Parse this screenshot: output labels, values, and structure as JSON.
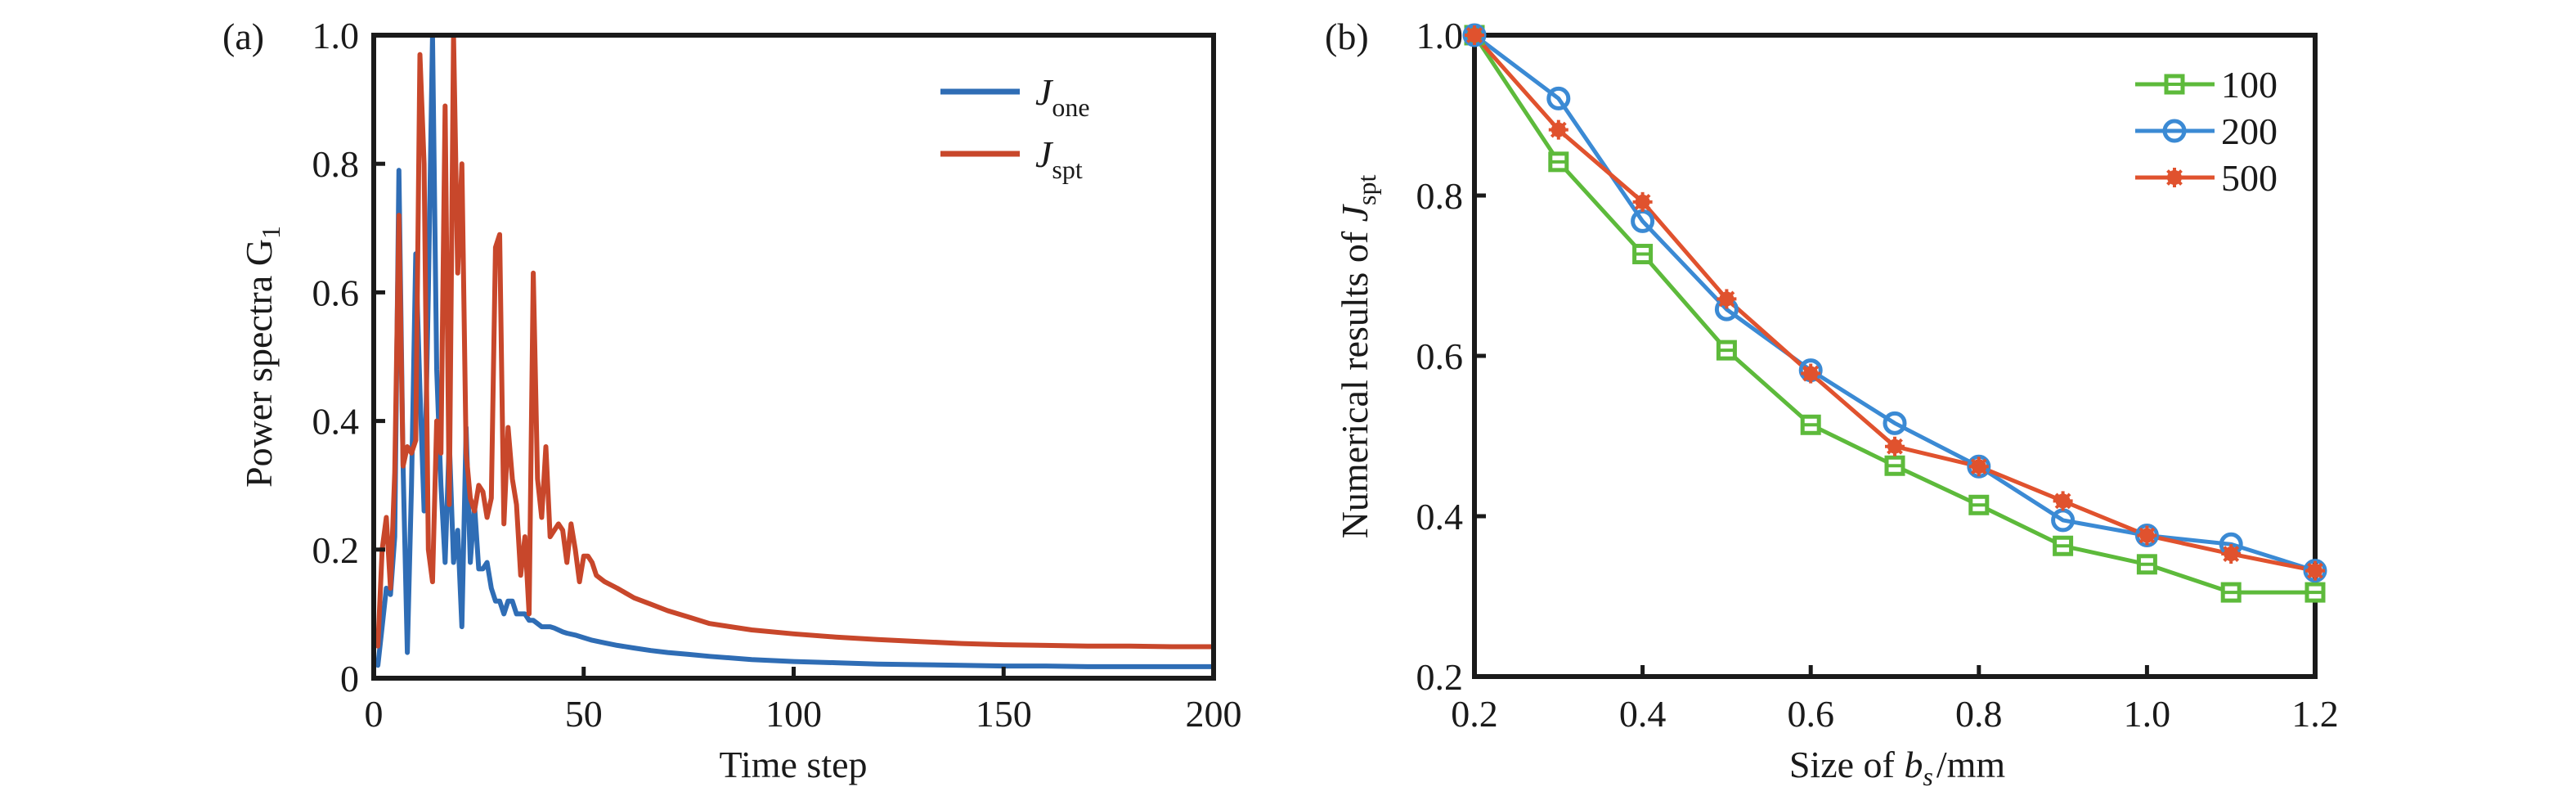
{
  "chart_data": [
    {
      "panel": "(a)",
      "type": "line",
      "title": "",
      "xlabel": "Time step",
      "ylabel": "Power spectra G",
      "ylabel_subscript": "1",
      "xlim": [
        0,
        200
      ],
      "ylim": [
        0,
        1.0
      ],
      "xticks": [
        0,
        50,
        100,
        150,
        200
      ],
      "xtick_labels": [
        "0",
        "50",
        "100",
        "150",
        "200"
      ],
      "yticks": [
        0,
        0.2,
        0.4,
        0.6,
        0.8,
        1.0
      ],
      "ytick_labels": [
        "0",
        "0.2",
        "0.4",
        "0.6",
        "0.8",
        "1.0"
      ],
      "grid": false,
      "legend_position": "top-right",
      "series": [
        {
          "name": "J_one",
          "legend_main": "J",
          "legend_sub": "one",
          "color": "#2f6db5",
          "x": [
            1,
            2,
            3,
            4,
            5,
            6,
            7,
            8,
            9,
            10,
            11,
            12,
            13,
            14,
            15,
            16,
            17,
            18,
            19,
            20,
            21,
            22,
            23,
            24,
            25,
            26,
            27,
            28,
            29,
            30,
            31,
            32,
            33,
            34,
            35,
            36,
            37,
            38,
            39,
            40,
            41,
            42,
            43,
            44,
            45,
            46,
            48,
            50,
            52,
            55,
            58,
            62,
            66,
            70,
            75,
            80,
            90,
            100,
            110,
            120,
            130,
            140,
            150,
            160,
            170,
            180,
            190,
            200
          ],
          "y": [
            0.02,
            0.08,
            0.14,
            0.13,
            0.22,
            0.79,
            0.33,
            0.04,
            0.3,
            0.66,
            0.45,
            0.26,
            0.6,
            1.0,
            0.48,
            0.3,
            0.18,
            0.37,
            0.18,
            0.23,
            0.08,
            0.39,
            0.18,
            0.27,
            0.17,
            0.17,
            0.18,
            0.14,
            0.12,
            0.12,
            0.1,
            0.12,
            0.12,
            0.1,
            0.1,
            0.1,
            0.09,
            0.09,
            0.085,
            0.08,
            0.08,
            0.08,
            0.078,
            0.075,
            0.072,
            0.07,
            0.067,
            0.063,
            0.059,
            0.055,
            0.051,
            0.047,
            0.043,
            0.04,
            0.037,
            0.034,
            0.029,
            0.026,
            0.024,
            0.022,
            0.021,
            0.02,
            0.019,
            0.019,
            0.018,
            0.018,
            0.018,
            0.018
          ]
        },
        {
          "name": "J_spt",
          "legend_main": "J",
          "legend_sub": "spt",
          "color": "#c8472b",
          "x": [
            1,
            2,
            3,
            4,
            5,
            6,
            7,
            8,
            9,
            10,
            11,
            12,
            13,
            14,
            15,
            16,
            17,
            18,
            19,
            20,
            21,
            22,
            23,
            24,
            25,
            26,
            27,
            28,
            29,
            30,
            31,
            32,
            33,
            34,
            35,
            36,
            37,
            38,
            39,
            40,
            41,
            42,
            43,
            44,
            45,
            46,
            47,
            48,
            49,
            50,
            51,
            52,
            53,
            55,
            58,
            62,
            66,
            70,
            75,
            80,
            90,
            100,
            110,
            120,
            130,
            140,
            150,
            160,
            170,
            180,
            190,
            200
          ],
          "y": [
            0.05,
            0.2,
            0.25,
            0.14,
            0.32,
            0.72,
            0.33,
            0.36,
            0.35,
            0.37,
            0.97,
            0.8,
            0.2,
            0.15,
            0.4,
            0.35,
            0.89,
            0.27,
            1.0,
            0.63,
            0.8,
            0.35,
            0.28,
            0.26,
            0.3,
            0.29,
            0.25,
            0.28,
            0.67,
            0.69,
            0.24,
            0.39,
            0.31,
            0.27,
            0.16,
            0.22,
            0.1,
            0.63,
            0.31,
            0.25,
            0.36,
            0.22,
            0.23,
            0.24,
            0.23,
            0.18,
            0.24,
            0.2,
            0.15,
            0.19,
            0.19,
            0.18,
            0.16,
            0.15,
            0.14,
            0.125,
            0.115,
            0.105,
            0.095,
            0.085,
            0.075,
            0.069,
            0.064,
            0.06,
            0.057,
            0.054,
            0.052,
            0.051,
            0.05,
            0.05,
            0.049,
            0.049
          ]
        }
      ]
    },
    {
      "panel": "(b)",
      "type": "line",
      "title": "",
      "xlabel_pre": "Size of ",
      "xlabel_var": "b",
      "xlabel_sub": "s",
      "xlabel_post": "/mm",
      "ylabel_pre": "Numerical results of ",
      "ylabel_var": "J",
      "ylabel_sub": "spt",
      "xlim": [
        0.2,
        1.2
      ],
      "ylim": [
        0.2,
        1.0
      ],
      "xticks": [
        0.2,
        0.4,
        0.6,
        0.8,
        1.0,
        1.2
      ],
      "xtick_labels": [
        "0.2",
        "0.4",
        "0.6",
        "0.8",
        "1.0",
        "1.2"
      ],
      "yticks": [
        0.2,
        0.4,
        0.6,
        0.8,
        1.0
      ],
      "ytick_labels": [
        "0.2",
        "0.4",
        "0.6",
        "0.8",
        "1.0"
      ],
      "grid": false,
      "legend_position": "top-right",
      "x": [
        0.2,
        0.3,
        0.4,
        0.5,
        0.6,
        0.7,
        0.8,
        0.9,
        1.0,
        1.1,
        1.2
      ],
      "series": [
        {
          "name": "100",
          "marker": "square",
          "color": "#5dba3b",
          "values": [
            1.0,
            0.842,
            0.727,
            0.607,
            0.514,
            0.463,
            0.414,
            0.363,
            0.34,
            0.305,
            0.305
          ]
        },
        {
          "name": "200",
          "marker": "circle",
          "color": "#3b8ad4",
          "values": [
            1.0,
            0.921,
            0.768,
            0.658,
            0.582,
            0.516,
            0.462,
            0.395,
            0.376,
            0.365,
            0.332
          ]
        },
        {
          "name": "500",
          "marker": "asterisk",
          "color": "#e0522e",
          "values": [
            1.0,
            0.882,
            0.792,
            0.671,
            0.578,
            0.487,
            0.462,
            0.419,
            0.376,
            0.353,
            0.332
          ]
        }
      ]
    }
  ]
}
